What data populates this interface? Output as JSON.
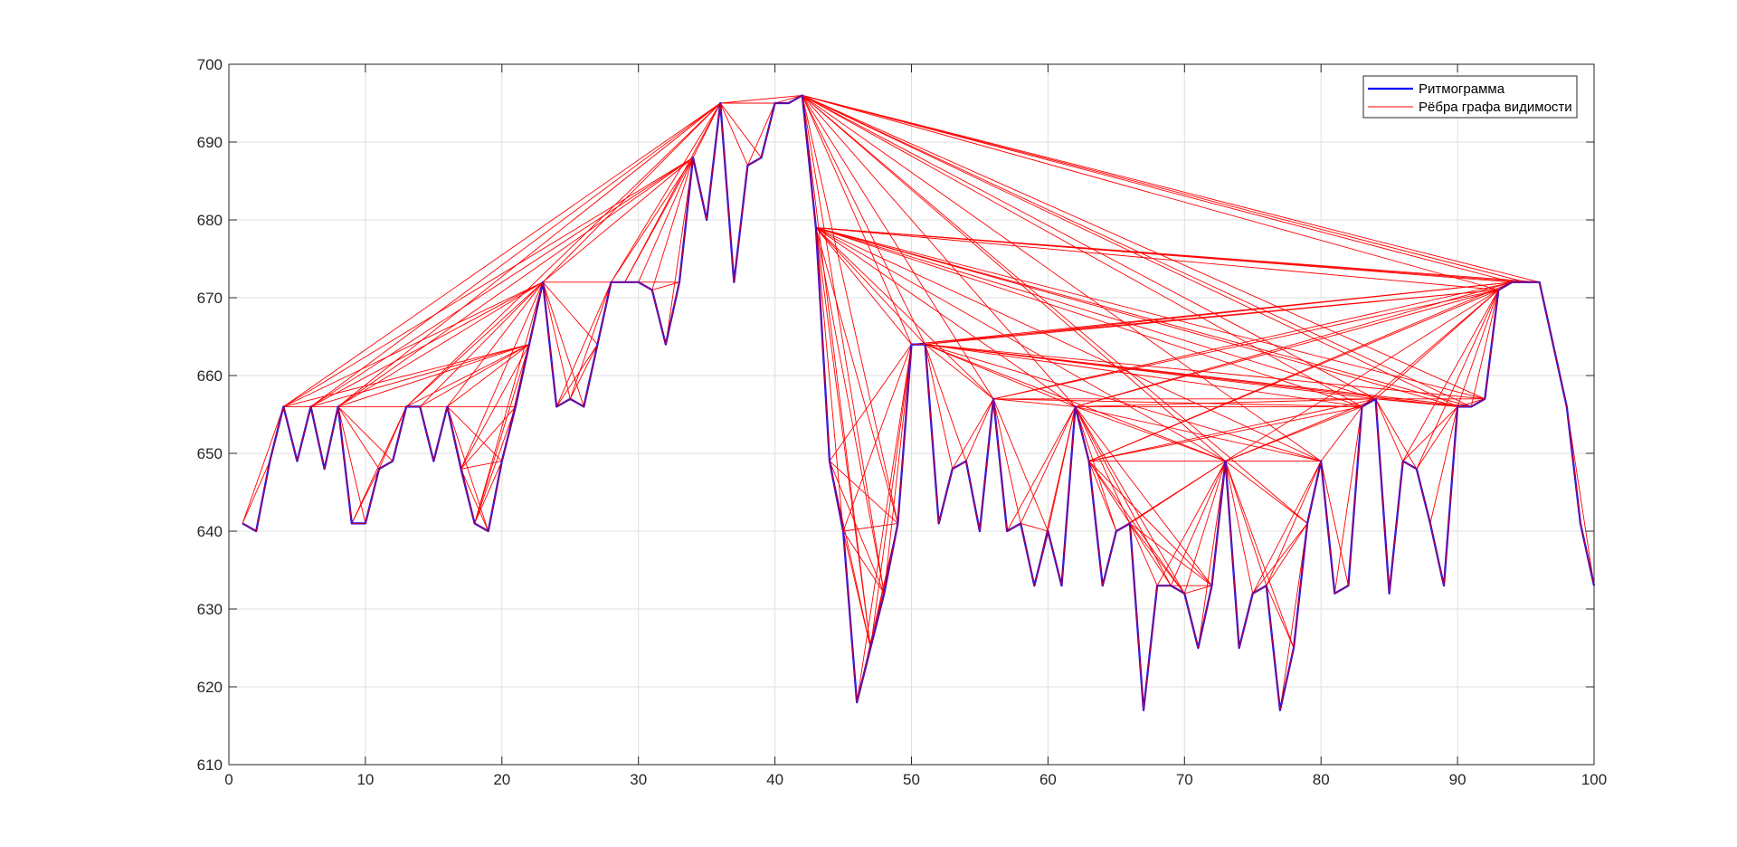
{
  "chart_data": {
    "type": "line",
    "xlim": [
      0,
      100
    ],
    "ylim": [
      610,
      700
    ],
    "xticks": [
      0,
      10,
      20,
      30,
      40,
      50,
      60,
      70,
      80,
      90,
      100
    ],
    "yticks": [
      610,
      620,
      630,
      640,
      650,
      660,
      670,
      680,
      690,
      700
    ],
    "grid": true,
    "legend": {
      "placement": "top-right",
      "entries": [
        "Ритмограмма",
        "Рёбра графа видимости"
      ]
    },
    "series": [
      {
        "name": "Ритмограмма",
        "color": "#0000ff",
        "x": [
          1,
          2,
          3,
          4,
          5,
          6,
          7,
          8,
          9,
          10,
          11,
          12,
          13,
          14,
          15,
          16,
          17,
          18,
          19,
          20,
          21,
          22,
          23,
          24,
          25,
          26,
          27,
          28,
          29,
          30,
          31,
          32,
          33,
          34,
          35,
          36,
          37,
          38,
          39,
          40,
          41,
          42,
          43,
          44,
          45,
          46,
          47,
          48,
          49,
          50,
          51,
          52,
          53,
          54,
          55,
          56,
          57,
          58,
          59,
          60,
          61,
          62,
          63,
          64,
          65,
          66,
          67,
          68,
          69,
          70,
          71,
          72,
          73,
          74,
          75,
          76,
          77,
          78,
          79,
          80,
          81,
          82,
          83,
          84,
          85,
          86,
          87,
          88,
          89,
          90,
          91,
          92,
          93,
          94,
          95,
          96,
          97,
          98,
          99,
          100
        ],
        "y": [
          641,
          640,
          649,
          656,
          649,
          656,
          648,
          656,
          641,
          641,
          648,
          649,
          656,
          656,
          649,
          656,
          648,
          641,
          640,
          649,
          656,
          664,
          672,
          656,
          657,
          656,
          664,
          672,
          672,
          672,
          671,
          664,
          672,
          688,
          680,
          695,
          672,
          687,
          688,
          695,
          695,
          696,
          679,
          649,
          640,
          618,
          625,
          632,
          641,
          664,
          664,
          641,
          648,
          649,
          640,
          657,
          640,
          641,
          633,
          640,
          633,
          656,
          649,
          633,
          640,
          641,
          617,
          633,
          633,
          632,
          625,
          633,
          649,
          625,
          632,
          633,
          617,
          625,
          641,
          649,
          632,
          633,
          656,
          657,
          632,
          649,
          648,
          641,
          633,
          656,
          656,
          657,
          671,
          672,
          672,
          672,
          664,
          656,
          641,
          633
        ]
      },
      {
        "name": "Рёбра графа видимости",
        "color": "#ff0000"
      }
    ]
  }
}
